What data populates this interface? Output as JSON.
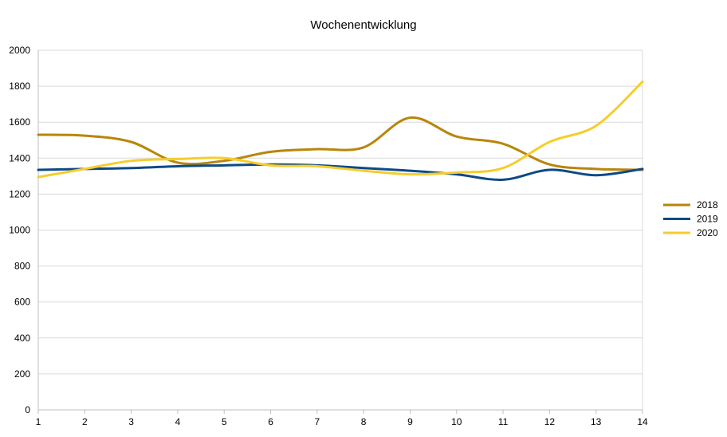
{
  "chart_data": {
    "type": "line",
    "title": "Wochenentwicklung",
    "xlabel": "",
    "ylabel": "",
    "x": [
      1,
      2,
      3,
      4,
      5,
      6,
      7,
      8,
      9,
      10,
      11,
      12,
      13,
      14
    ],
    "xlim": [
      1,
      14
    ],
    "ylim": [
      0,
      2000
    ],
    "x_ticks": [
      "1",
      "2",
      "3",
      "4",
      "5",
      "6",
      "7",
      "8",
      "9",
      "10",
      "11",
      "12",
      "13",
      "14"
    ],
    "y_ticks": [
      "0",
      "200",
      "400",
      "600",
      "800",
      "1000",
      "1200",
      "1400",
      "1600",
      "1800",
      "2000"
    ],
    "grid": true,
    "legend_position": "right",
    "series": [
      {
        "name": "2018",
        "color": "#b8860b",
        "values": [
          1530,
          1525,
          1490,
          1375,
          1385,
          1435,
          1450,
          1460,
          1625,
          1520,
          1480,
          1365,
          1340,
          1335
        ]
      },
      {
        "name": "2019",
        "color": "#0d4a86",
        "values": [
          1335,
          1340,
          1345,
          1355,
          1360,
          1365,
          1360,
          1345,
          1330,
          1310,
          1280,
          1335,
          1305,
          1340
        ]
      },
      {
        "name": "2020",
        "color": "#f5cd2d",
        "values": [
          1295,
          1340,
          1385,
          1395,
          1400,
          1360,
          1355,
          1330,
          1310,
          1320,
          1345,
          1490,
          1580,
          1825
        ]
      }
    ]
  }
}
